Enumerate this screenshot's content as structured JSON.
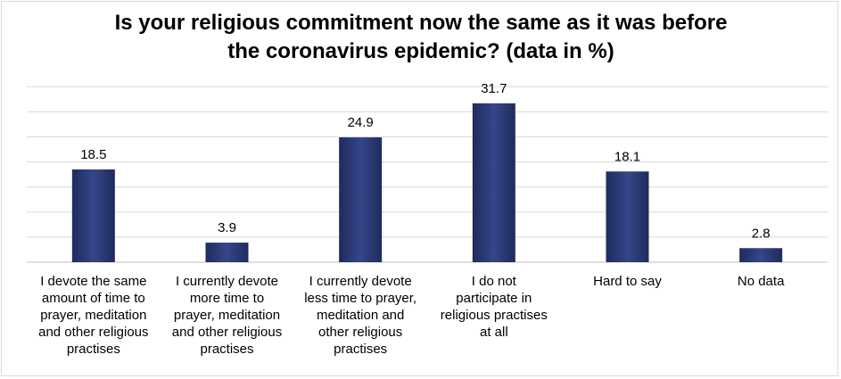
{
  "chart_data": {
    "type": "bar",
    "title_line1": "Is your religious commitment now the same as it was before",
    "title_line2": "the coronavirus epidemic? (data in %)",
    "categories": [
      [
        "I devote the same",
        "amount of time to",
        "prayer, meditation",
        "and other religious",
        "practises"
      ],
      [
        "I currently devote",
        "more time to",
        "prayer, meditation",
        "and other religious",
        "practises"
      ],
      [
        "I currently devote",
        "less time to prayer,",
        "meditation and",
        "other religious",
        "practises"
      ],
      [
        "I do not",
        "participate in",
        "religious practises",
        "at all"
      ],
      [
        "Hard to say"
      ],
      [
        "No data"
      ]
    ],
    "values": [
      18.5,
      3.9,
      24.9,
      31.7,
      18.1,
      2.8
    ],
    "value_labels": [
      "18.5",
      "3.9",
      "24.9",
      "31.7",
      "18.1",
      "2.8"
    ],
    "ylim": [
      0,
      35
    ],
    "grid": true,
    "legend": "none",
    "bar_color": "#2f3f7a",
    "grid_color": "#d9d9d9"
  }
}
